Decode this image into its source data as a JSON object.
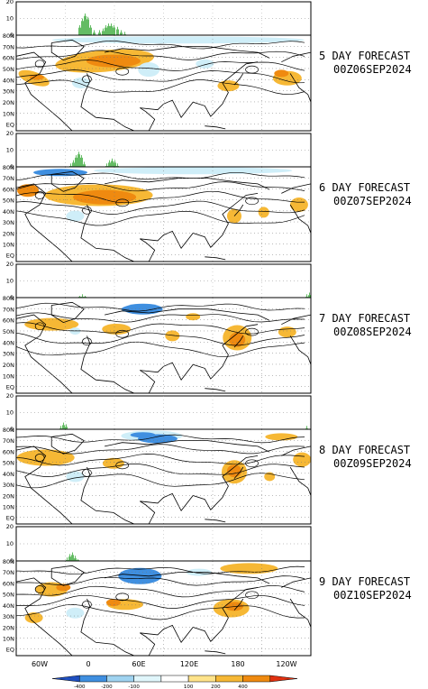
{
  "panels": [
    {
      "label_line1": "5 DAY FORECAST",
      "label_line2": "00Z06SEP2024"
    },
    {
      "label_line1": "6 DAY FORECAST",
      "label_line2": "00Z07SEP2024"
    },
    {
      "label_line1": "7 DAY FORECAST",
      "label_line2": "00Z08SEP2024"
    },
    {
      "label_line1": "8 DAY FORECAST",
      "label_line2": "00Z09SEP2024"
    },
    {
      "label_line1": "9 DAY FORECAST",
      "label_line2": "00Z10SEP2024"
    }
  ],
  "histogram_ticks": [
    "20",
    "10",
    "0"
  ],
  "lat_labels": [
    "80N",
    "70N",
    "60N",
    "50N",
    "40N",
    "30N",
    "20N",
    "10N",
    "EQ"
  ],
  "lon_labels": [
    "60W",
    "0",
    "60E",
    "120E",
    "180",
    "120W"
  ],
  "colorbar": {
    "labels": [
      "-400",
      "-200",
      "-100",
      "100",
      "200",
      "400"
    ],
    "colors": [
      "#1f4fc0",
      "#3f8fe0",
      "#9fd3f0",
      "#e0f6fb",
      "#ffffff",
      "#ffe38a",
      "#f6b835",
      "#ef8a10",
      "#e03010"
    ]
  },
  "colors": {
    "histogram": "#22a022",
    "positive": "#f6b835",
    "positive_strong": "#ef8a10",
    "negative": "#3f8fe0",
    "negative_light": "#cfeef8"
  }
}
